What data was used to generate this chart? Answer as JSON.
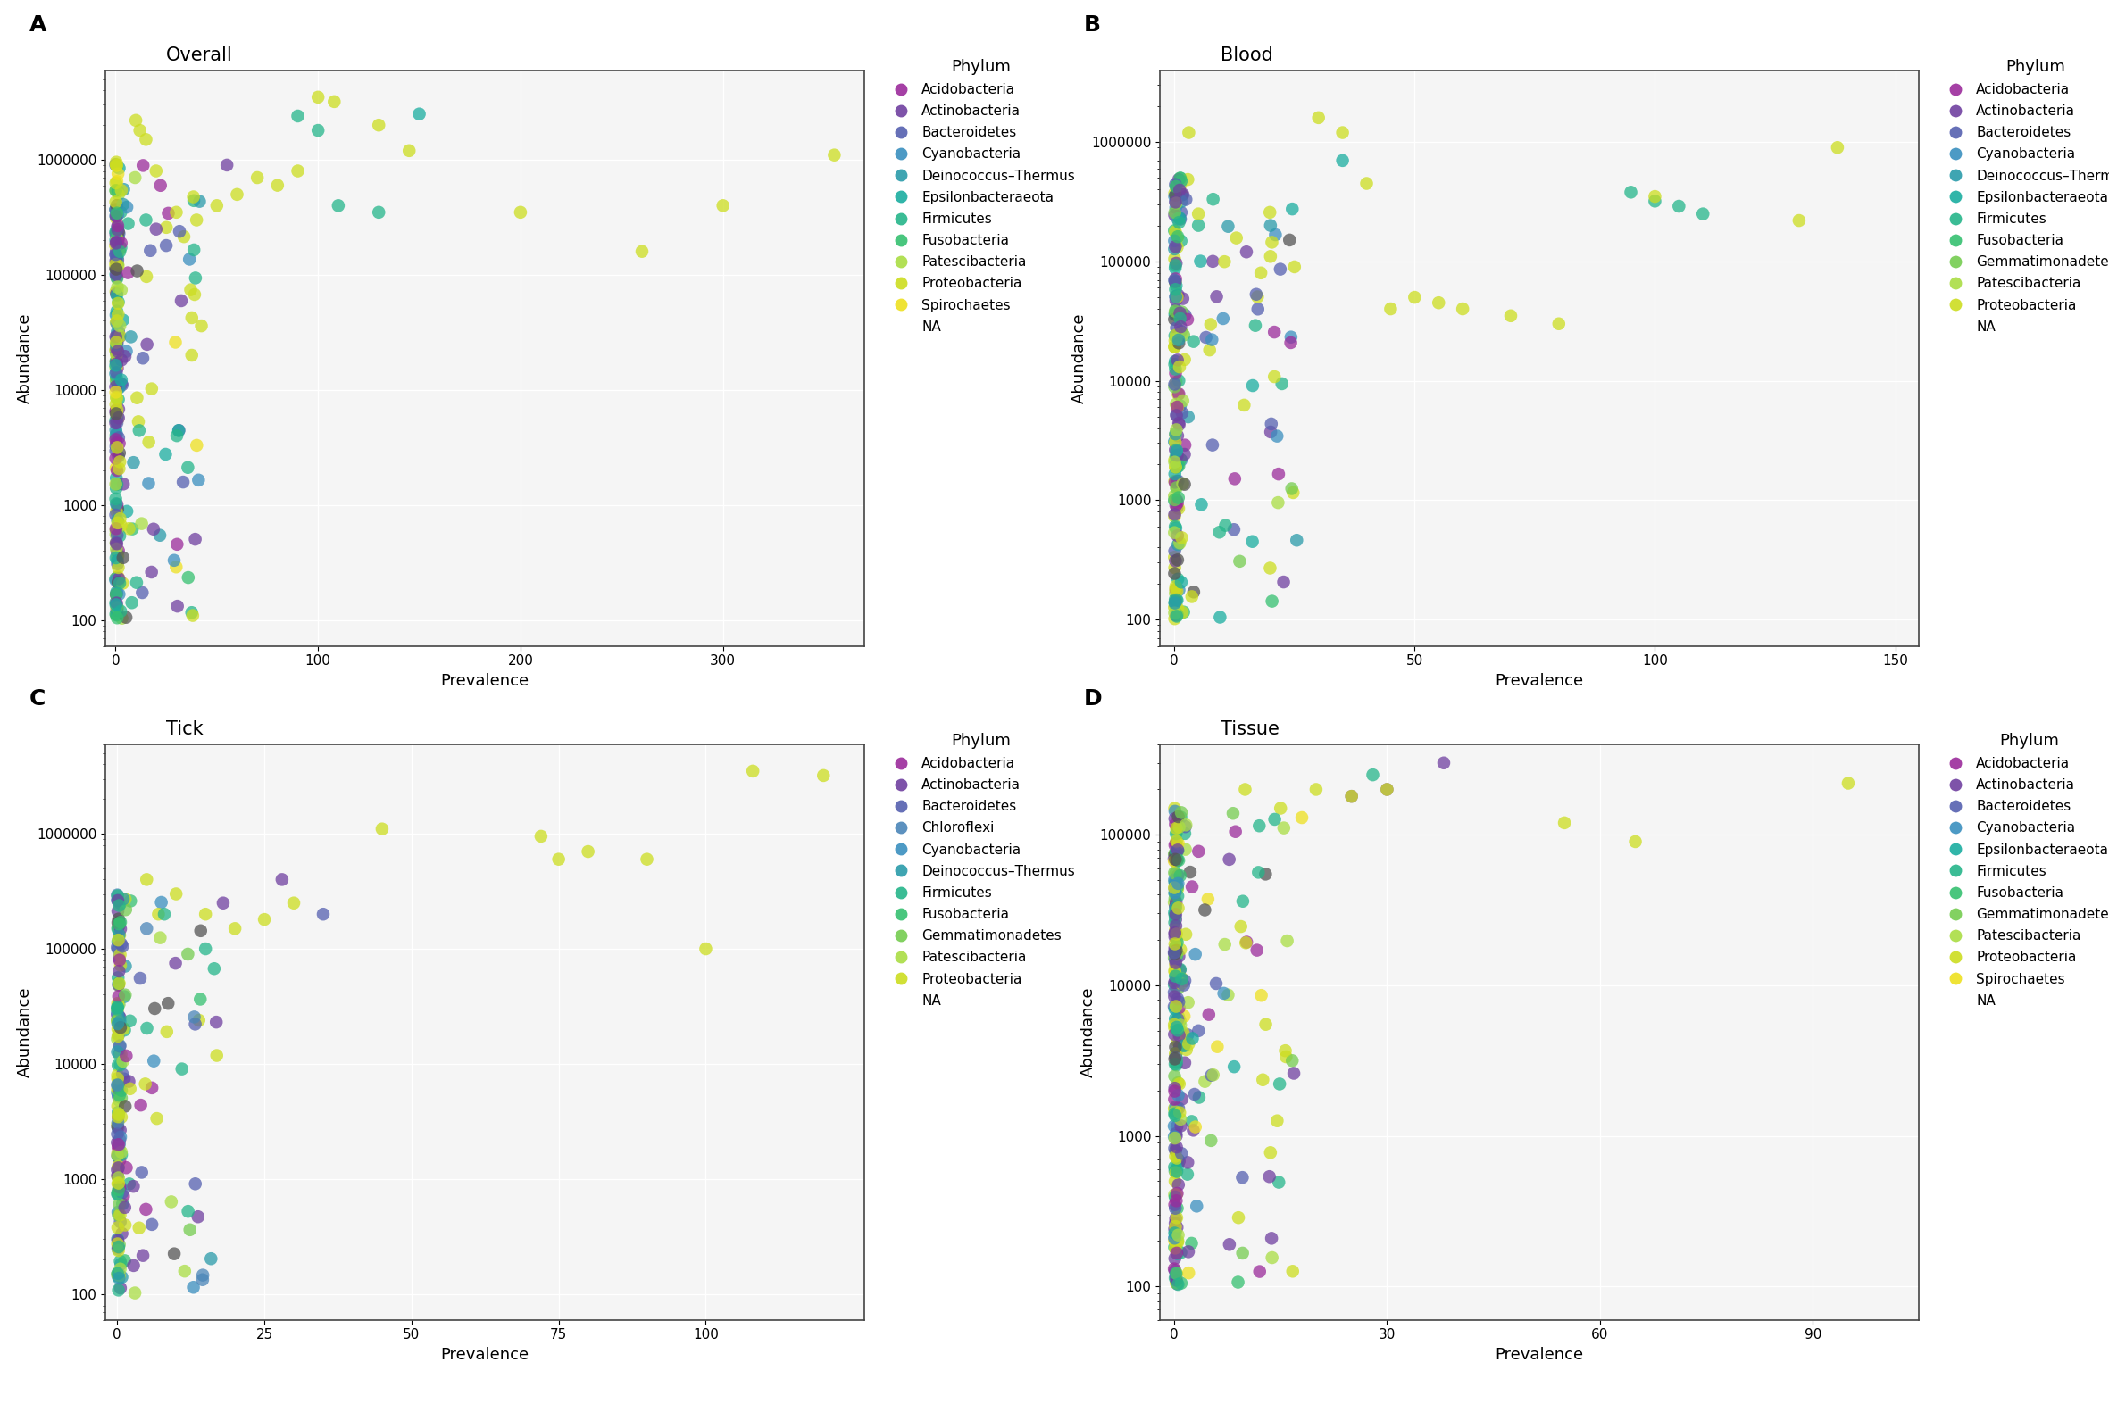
{
  "phylum_colors": {
    "Acidobacteria": "#9B2B9B",
    "Actinobacteria": "#7040A0",
    "Bacteroidetes": "#5560B0",
    "Chloroflexi": "#4A85B8",
    "Cyanobacteria": "#3A8FBF",
    "Deinococcus-Thermus": "#2A9BAA",
    "Epsilonbacteraeota": "#1AADA0",
    "Firmicutes": "#25B58A",
    "Fusobacteria": "#35C070",
    "Gemmatimonadetes": "#75CC50",
    "Patescibacteria": "#AADD44",
    "Proteobacteria": "#CCDD20",
    "Spirochaetes": "#EEE020",
    "NA": "#555555"
  },
  "panels": {
    "A": {
      "title": "Overall",
      "label": "A",
      "xlabel": "Prevalence",
      "ylabel": "Abundance",
      "xlim": [
        -5,
        370
      ],
      "xticks": [
        0,
        100,
        200,
        300
      ],
      "ylim_log": [
        60,
        6000000
      ],
      "yticks": [
        100,
        1000,
        10000,
        100000,
        1000000
      ],
      "legend": [
        "Acidobacteria",
        "Actinobacteria",
        "Bacteroidetes",
        "Cyanobacteria",
        "Deinococcus-Thermus",
        "Epsilonbacteraeota",
        "Firmicutes",
        "Fusobacteria",
        "Patescibacteria",
        "Proteobacteria",
        "Spirochaetes",
        "NA"
      ]
    },
    "B": {
      "title": "Blood",
      "label": "B",
      "xlabel": "Prevalence",
      "ylabel": "Abundance",
      "xlim": [
        -3,
        155
      ],
      "xticks": [
        0,
        50,
        100,
        150
      ],
      "ylim_log": [
        60,
        4000000
      ],
      "yticks": [
        100,
        1000,
        10000,
        100000,
        1000000
      ],
      "legend": [
        "Acidobacteria",
        "Actinobacteria",
        "Bacteroidetes",
        "Cyanobacteria",
        "Deinococcus-Thermus",
        "Epsilonbacteraeota",
        "Firmicutes",
        "Fusobacteria",
        "Gemmatimonadetes",
        "Patescibacteria",
        "Proteobacteria",
        "NA"
      ]
    },
    "C": {
      "title": "Tick",
      "label": "C",
      "xlabel": "Prevalence",
      "ylabel": "Abundance",
      "xlim": [
        -2,
        127
      ],
      "xticks": [
        0,
        25,
        50,
        75,
        100
      ],
      "ylim_log": [
        60,
        6000000
      ],
      "yticks": [
        100,
        1000,
        10000,
        100000,
        1000000
      ],
      "legend": [
        "Acidobacteria",
        "Actinobacteria",
        "Bacteroidetes",
        "Chloroflexi",
        "Cyanobacteria",
        "Deinococcus-Thermus",
        "Firmicutes",
        "Fusobacteria",
        "Gemmatimonadetes",
        "Patescibacteria",
        "Proteobacteria",
        "NA"
      ]
    },
    "D": {
      "title": "Tissue",
      "label": "D",
      "xlabel": "Prevalence",
      "ylabel": "Abundance",
      "xlim": [
        -2,
        105
      ],
      "xticks": [
        0,
        30,
        60,
        90
      ],
      "ylim_log": [
        60,
        400000
      ],
      "yticks": [
        100,
        1000,
        10000,
        100000
      ],
      "legend": [
        "Acidobacteria",
        "Actinobacteria",
        "Bacteroidetes",
        "Cyanobacteria",
        "Epsilonbacteraeota",
        "Firmicutes",
        "Fusobacteria",
        "Gemmatimonadetes",
        "Patescibacteria",
        "Proteobacteria",
        "Spirochaetes",
        "NA"
      ]
    }
  },
  "panel_bg": "#F5F5F5",
  "background_color": "#FFFFFF",
  "grid_color": "#FFFFFF",
  "marker_size": 110,
  "marker_alpha": 0.75
}
